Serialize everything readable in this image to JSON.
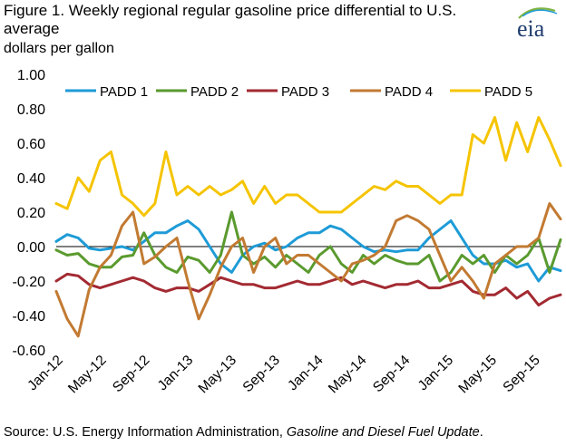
{
  "title": "Figure 1. Weekly regional regular gasoline price differential to U.S. average",
  "unit_label": "dollars per gallon",
  "logo_text": "eia",
  "source_prefix": "Source: U.S. Energy Information Administration, ",
  "source_italic": "Gasoline and Diesel Fuel Update",
  "source_suffix": ".",
  "chart_data": {
    "type": "line",
    "title": "Figure 1. Weekly regional regular gasoline price differential to U.S. average",
    "ylabel": "dollars per gallon",
    "xlabel": "",
    "ylim": [
      -0.6,
      1.0
    ],
    "yticks": [
      1.0,
      0.8,
      0.6,
      0.4,
      0.2,
      0.0,
      -0.2,
      -0.4,
      -0.6
    ],
    "ytick_labels": [
      "1.00",
      "0.80",
      "0.60",
      "0.40",
      "0.20",
      "0.00",
      "-0.20",
      "-0.40",
      "-0.60"
    ],
    "x_range": [
      "2012-01",
      "2015-11"
    ],
    "x_tick_labels": [
      "Jan-12",
      "May-12",
      "Sep-12",
      "Jan-13",
      "May-13",
      "Sep-13",
      "Jan-14",
      "May-14",
      "Sep-14",
      "Jan-15",
      "May-15",
      "Sep-15"
    ],
    "x": [
      "2012-01",
      "2012-02",
      "2012-03",
      "2012-04",
      "2012-05",
      "2012-06",
      "2012-07",
      "2012-08",
      "2012-09",
      "2012-10",
      "2012-11",
      "2012-12",
      "2013-01",
      "2013-02",
      "2013-03",
      "2013-04",
      "2013-05",
      "2013-06",
      "2013-07",
      "2013-08",
      "2013-09",
      "2013-10",
      "2013-11",
      "2013-12",
      "2014-01",
      "2014-02",
      "2014-03",
      "2014-04",
      "2014-05",
      "2014-06",
      "2014-07",
      "2014-08",
      "2014-09",
      "2014-10",
      "2014-11",
      "2014-12",
      "2015-01",
      "2015-02",
      "2015-03",
      "2015-04",
      "2015-05",
      "2015-06",
      "2015-07",
      "2015-08",
      "2015-09",
      "2015-10",
      "2015-11"
    ],
    "legend_position": "top",
    "grid": false,
    "series": [
      {
        "name": "PADD 1",
        "color": "#1e9bd7",
        "values": [
          0.03,
          0.07,
          0.05,
          -0.01,
          -0.02,
          -0.01,
          0.0,
          -0.02,
          0.03,
          0.08,
          0.08,
          0.12,
          0.15,
          0.1,
          0.0,
          -0.1,
          -0.15,
          -0.05,
          0.0,
          0.02,
          -0.02,
          0.0,
          0.05,
          0.08,
          0.08,
          0.12,
          0.1,
          0.05,
          0.0,
          -0.03,
          -0.02,
          -0.03,
          -0.02,
          -0.02,
          0.05,
          0.1,
          0.15,
          0.05,
          -0.05,
          -0.1,
          -0.1,
          -0.08,
          -0.12,
          -0.1,
          -0.2,
          -0.12,
          -0.14
        ]
      },
      {
        "name": "PADD 2",
        "color": "#5a9a2e",
        "values": [
          -0.02,
          -0.05,
          -0.04,
          -0.1,
          -0.12,
          -0.12,
          -0.06,
          -0.05,
          0.08,
          -0.05,
          -0.12,
          -0.15,
          -0.06,
          -0.08,
          -0.15,
          -0.05,
          0.2,
          -0.05,
          -0.1,
          -0.06,
          -0.12,
          -0.05,
          -0.1,
          -0.15,
          -0.05,
          0.0,
          -0.1,
          -0.15,
          -0.05,
          -0.1,
          -0.05,
          -0.08,
          -0.1,
          -0.1,
          -0.05,
          -0.2,
          -0.15,
          -0.05,
          -0.1,
          -0.05,
          -0.15,
          -0.05,
          -0.1,
          -0.05,
          0.05,
          -0.15,
          0.04
        ]
      },
      {
        "name": "PADD 3",
        "color": "#a32a32",
        "values": [
          -0.2,
          -0.16,
          -0.17,
          -0.22,
          -0.24,
          -0.22,
          -0.2,
          -0.18,
          -0.2,
          -0.24,
          -0.26,
          -0.24,
          -0.24,
          -0.26,
          -0.22,
          -0.18,
          -0.2,
          -0.22,
          -0.22,
          -0.24,
          -0.24,
          -0.22,
          -0.2,
          -0.22,
          -0.22,
          -0.2,
          -0.18,
          -0.22,
          -0.2,
          -0.22,
          -0.24,
          -0.22,
          -0.22,
          -0.2,
          -0.24,
          -0.24,
          -0.22,
          -0.2,
          -0.26,
          -0.28,
          -0.28,
          -0.24,
          -0.3,
          -0.26,
          -0.34,
          -0.3,
          -0.28
        ]
      },
      {
        "name": "PADD 4",
        "color": "#c27a32",
        "values": [
          -0.26,
          -0.42,
          -0.52,
          -0.25,
          -0.12,
          -0.05,
          0.12,
          0.2,
          -0.1,
          -0.06,
          0.0,
          0.05,
          -0.2,
          -0.42,
          -0.28,
          -0.12,
          0.0,
          0.05,
          -0.15,
          0.0,
          0.05,
          -0.1,
          -0.05,
          -0.05,
          -0.1,
          -0.15,
          -0.2,
          -0.1,
          -0.08,
          -0.05,
          0.0,
          0.15,
          0.18,
          0.15,
          0.1,
          -0.05,
          -0.2,
          -0.12,
          -0.2,
          -0.3,
          -0.1,
          -0.05,
          0.0,
          0.0,
          0.05,
          0.25,
          0.16
        ]
      },
      {
        "name": "PADD 5",
        "color": "#f5c400",
        "values": [
          0.25,
          0.22,
          0.4,
          0.32,
          0.5,
          0.55,
          0.3,
          0.25,
          0.18,
          0.25,
          0.55,
          0.3,
          0.35,
          0.3,
          0.35,
          0.3,
          0.33,
          0.38,
          0.25,
          0.35,
          0.25,
          0.3,
          0.3,
          0.25,
          0.2,
          0.2,
          0.2,
          0.25,
          0.3,
          0.35,
          0.33,
          0.38,
          0.35,
          0.35,
          0.3,
          0.25,
          0.3,
          0.3,
          0.65,
          0.6,
          0.75,
          0.5,
          0.72,
          0.55,
          0.75,
          0.62,
          0.47
        ]
      }
    ]
  }
}
